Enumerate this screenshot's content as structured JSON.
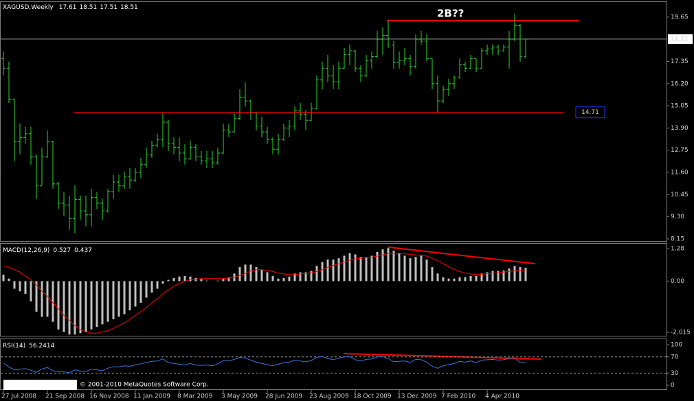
{
  "chart_data": [
    {
      "type": "ohlc",
      "title": "XAGUSD,Weekly",
      "annotation": "2B??",
      "categories": [
        "27 Jul 2008",
        null,
        null,
        null,
        null,
        null,
        null,
        null,
        "21 Sep 2008",
        null,
        null,
        null,
        null,
        null,
        null,
        null,
        "16 Nov 2008",
        null,
        null,
        null,
        null,
        null,
        null,
        null,
        "11 Jan 2009",
        null,
        null,
        null,
        null,
        null,
        null,
        null,
        "8 Mar 2009",
        null,
        null,
        null,
        null,
        null,
        null,
        null,
        "3 May 2009",
        null,
        null,
        null,
        null,
        null,
        null,
        null,
        "28 Jun 2009",
        null,
        null,
        null,
        null,
        null,
        null,
        null,
        "23 Aug 2009",
        null,
        null,
        null,
        null,
        null,
        null,
        null,
        "18 Oct 2009",
        null,
        null,
        null,
        null,
        null,
        null,
        null,
        "13 Dec 2009",
        null,
        null,
        null,
        null,
        null,
        null,
        null,
        "7 Feb 2010",
        null,
        null,
        null,
        null,
        null,
        null,
        null,
        "4 Apr 2010",
        null,
        null,
        null,
        null,
        null,
        null,
        null
      ],
      "open": [
        17.5,
        17.0,
        15.4,
        13.2,
        13.4,
        13.6,
        12.4,
        10.9,
        12.4,
        13.2,
        11.0,
        10.0,
        9.9,
        9.2,
        10.2,
        9.6,
        9.4,
        10.3,
        10.0,
        9.6,
        10.6,
        11.1,
        10.9,
        11.4,
        11.2,
        11.6,
        12.0,
        12.5,
        13.0,
        13.3,
        14.2,
        13.1,
        12.9,
        12.6,
        12.3,
        12.9,
        12.4,
        12.2,
        12.3,
        12.1,
        12.6,
        13.8,
        13.7,
        14.4,
        15.5,
        15.3,
        14.7,
        14.0,
        13.7,
        13.3,
        12.8,
        13.3,
        13.9,
        14.0,
        14.8,
        14.6,
        14.3,
        14.9,
        16.4,
        17.0,
        16.6,
        16.3,
        17.0,
        17.7,
        17.9,
        17.0,
        16.6,
        17.4,
        17.6,
        18.5,
        18.7,
        18.2,
        17.3,
        17.4,
        17.5,
        17.1,
        18.5,
        18.4,
        17.5,
        16.2,
        15.3,
        15.9,
        16.2,
        16.5,
        17.2,
        17.0,
        17.5,
        17.0,
        17.9,
        18.0,
        18.1,
        17.9,
        18.1,
        18.5,
        19.2,
        17.61
      ],
      "high": [
        17.87,
        17.34,
        15.4,
        14.13,
        13.96,
        13.96,
        12.53,
        12.89,
        13.78,
        13.24,
        11.11,
        10.58,
        10.4,
        10.93,
        10.4,
        10.4,
        10.75,
        10.58,
        10.22,
        10.75,
        11.47,
        11.47,
        11.64,
        11.82,
        11.82,
        12.35,
        12.89,
        13.24,
        13.6,
        14.67,
        14.31,
        13.42,
        13.42,
        13.07,
        13.24,
        13.07,
        12.71,
        12.71,
        12.71,
        12.89,
        14.13,
        14.13,
        14.67,
        15.91,
        16.27,
        15.38,
        14.75,
        14.49,
        13.96,
        13.42,
        13.6,
        14.13,
        14.31,
        15.02,
        15.2,
        14.85,
        15.2,
        16.63,
        17.34,
        17.69,
        17.16,
        17.34,
        18.05,
        18.23,
        17.95,
        17.16,
        17.69,
        17.87,
        18.94,
        19.12,
        19.47,
        18.4,
        17.87,
        18.05,
        17.69,
        18.76,
        18.94,
        18.76,
        17.5,
        16.63,
        16.09,
        16.45,
        16.63,
        17.51,
        17.34,
        17.69,
        17.5,
        18.05,
        18.23,
        18.23,
        18.23,
        18.23,
        18.94,
        19.83,
        19.3,
        18.51
      ],
      "low": [
        16.63,
        15.2,
        12.18,
        12.53,
        13.07,
        12.0,
        10.22,
        10.93,
        12.35,
        10.75,
        9.69,
        9.33,
        8.62,
        8.44,
        9.15,
        8.8,
        8.8,
        9.69,
        9.15,
        9.51,
        10.22,
        10.58,
        10.75,
        10.75,
        11.11,
        11.29,
        11.82,
        12.35,
        12.89,
        12.89,
        12.71,
        12.53,
        12.18,
        12.0,
        12.25,
        12.18,
        12.0,
        11.82,
        11.82,
        12.0,
        12.53,
        13.42,
        13.65,
        14.31,
        15.02,
        14.31,
        13.78,
        13.42,
        13.07,
        12.53,
        12.53,
        13.24,
        13.42,
        13.78,
        14.31,
        13.78,
        14.25,
        14.85,
        15.91,
        16.27,
        15.91,
        15.91,
        16.98,
        17.16,
        16.8,
        16.27,
        16.55,
        16.98,
        17.51,
        17.69,
        18.05,
        16.98,
        16.98,
        17.16,
        16.63,
        16.98,
        18.23,
        17.34,
        15.91,
        14.67,
        15.2,
        15.56,
        15.91,
        16.45,
        16.8,
        16.98,
        16.8,
        16.98,
        17.69,
        17.69,
        17.69,
        17.87,
        16.98,
        18.4,
        17.34,
        17.51
      ],
      "close": [
        17.0,
        15.4,
        13.2,
        13.4,
        13.6,
        12.4,
        10.9,
        12.4,
        13.2,
        11.0,
        10.0,
        9.9,
        9.2,
        10.2,
        9.6,
        9.4,
        10.3,
        10.0,
        9.6,
        10.6,
        11.1,
        10.9,
        11.4,
        11.2,
        11.6,
        12.0,
        12.5,
        13.0,
        13.3,
        14.2,
        13.1,
        12.9,
        12.6,
        12.3,
        12.9,
        12.4,
        12.2,
        12.3,
        12.1,
        12.6,
        13.8,
        13.7,
        14.4,
        15.5,
        15.3,
        14.7,
        14.0,
        13.7,
        13.3,
        12.8,
        13.3,
        13.9,
        14.0,
        14.8,
        14.6,
        14.3,
        14.9,
        16.4,
        17.0,
        16.6,
        16.3,
        17.0,
        17.7,
        17.9,
        17.0,
        16.6,
        17.4,
        17.6,
        18.5,
        18.7,
        18.2,
        17.3,
        17.4,
        17.5,
        17.1,
        18.5,
        18.4,
        17.5,
        16.2,
        15.3,
        15.9,
        16.2,
        16.5,
        17.2,
        17.0,
        17.5,
        17.0,
        17.9,
        18.0,
        18.1,
        17.9,
        18.1,
        18.5,
        19.2,
        17.61,
        18.51
      ],
      "color": "#2bd92b",
      "ylim": [
        8.04,
        20.43
      ],
      "yticks": [
        19.65,
        17.35,
        {
          "value": 16.2,
          "label": "16.20"
        },
        15.05,
        {
          "value": 13.9,
          "label": "13.90"
        },
        12.75,
        {
          "value": 11.6,
          "label": "11.60"
        },
        10.45,
        {
          "value": 9.3,
          "label": "9.30"
        },
        8.15
      ],
      "price_label": 14.71
    },
    {
      "type": "bar",
      "title": "MACD(12,26,9)",
      "values": [
        0.25,
        0.1,
        -0.3,
        -0.4,
        -0.5,
        -0.8,
        -1.2,
        -1.4,
        -1.4,
        -1.6,
        -1.9,
        -2.0,
        -2.1,
        -2.1,
        -2.05,
        -2.0,
        -1.9,
        -1.8,
        -1.7,
        -1.6,
        -1.5,
        -1.4,
        -1.3,
        -1.15,
        -1.0,
        -0.85,
        -0.65,
        -0.45,
        -0.3,
        -0.1,
        0.05,
        0.12,
        0.18,
        0.2,
        0.18,
        0.12,
        0.08,
        0.02,
        0.0,
        0.02,
        0.1,
        0.15,
        0.3,
        0.55,
        0.65,
        0.65,
        0.55,
        0.45,
        0.35,
        0.2,
        0.1,
        0.12,
        0.18,
        0.3,
        0.35,
        0.35,
        0.4,
        0.6,
        0.75,
        0.85,
        0.85,
        0.9,
        1.0,
        1.1,
        1.05,
        0.95,
        0.95,
        1.0,
        1.15,
        1.25,
        1.3,
        1.2,
        1.1,
        1.0,
        0.9,
        0.95,
        1.0,
        0.85,
        0.55,
        0.3,
        0.15,
        0.1,
        0.1,
        0.15,
        0.15,
        0.2,
        0.2,
        0.3,
        0.35,
        0.4,
        0.4,
        0.42,
        0.5,
        0.6,
        0.55,
        0.527
      ],
      "color": "#c0c0c0",
      "signal": [
        0.6,
        0.55,
        0.45,
        0.35,
        0.2,
        0.05,
        -0.15,
        -0.4,
        -0.6,
        -0.85,
        -1.1,
        -1.35,
        -1.55,
        -1.75,
        -1.9,
        -2.0,
        -2.05,
        -2.05,
        -2.0,
        -1.95,
        -1.85,
        -1.75,
        -1.65,
        -1.5,
        -1.35,
        -1.2,
        -1.05,
        -0.85,
        -0.7,
        -0.5,
        -0.35,
        -0.2,
        -0.1,
        0.0,
        0.05,
        0.08,
        0.1,
        0.1,
        0.1,
        0.1,
        0.1,
        0.12,
        0.15,
        0.22,
        0.3,
        0.4,
        0.45,
        0.45,
        0.42,
        0.38,
        0.32,
        0.28,
        0.25,
        0.26,
        0.28,
        0.3,
        0.32,
        0.38,
        0.45,
        0.55,
        0.62,
        0.68,
        0.75,
        0.82,
        0.88,
        0.9,
        0.92,
        0.94,
        0.98,
        1.03,
        1.08,
        1.1,
        1.1,
        1.08,
        1.05,
        1.03,
        1.02,
        0.98,
        0.9,
        0.8,
        0.68,
        0.56,
        0.46,
        0.38,
        0.32,
        0.28,
        0.26,
        0.27,
        0.29,
        0.31,
        0.33,
        0.36,
        0.38,
        0.41,
        0.43,
        0.437
      ],
      "signal_color": "#ff0000",
      "ylim": [
        -2.15,
        1.47
      ],
      "yticks": [
        1.28,
        {
          "value": 0,
          "label": "0.00"
        },
        -2.015
      ]
    },
    {
      "type": "line",
      "title": "RSI(14)",
      "values": [
        55,
        45,
        38,
        40,
        41,
        37,
        32,
        40,
        44,
        36,
        33,
        33,
        31,
        38,
        35,
        34,
        40,
        38,
        36,
        42,
        46,
        45,
        48,
        47,
        50,
        53,
        56,
        59,
        60,
        65,
        56,
        54,
        52,
        50,
        54,
        50,
        49,
        50,
        48,
        53,
        61,
        60,
        64,
        69,
        67,
        62,
        57,
        54,
        51,
        48,
        52,
        56,
        57,
        62,
        60,
        58,
        61,
        69,
        71,
        66,
        63,
        67,
        70,
        71,
        63,
        60,
        64,
        65,
        70,
        71,
        66,
        58,
        59,
        60,
        56,
        64,
        63,
        57,
        47,
        42,
        48,
        51,
        54,
        59,
        57,
        60,
        56,
        62,
        63,
        64,
        62,
        63,
        66,
        68,
        56,
        56.2414
      ],
      "color": "#3c78d8",
      "ylim": [
        -10,
        112
      ],
      "yticks": [
        100,
        70,
        30,
        0
      ],
      "levels": [
        70,
        30
      ]
    }
  ],
  "footer": "© 2001-2010 MetaQuotes Software Corp."
}
